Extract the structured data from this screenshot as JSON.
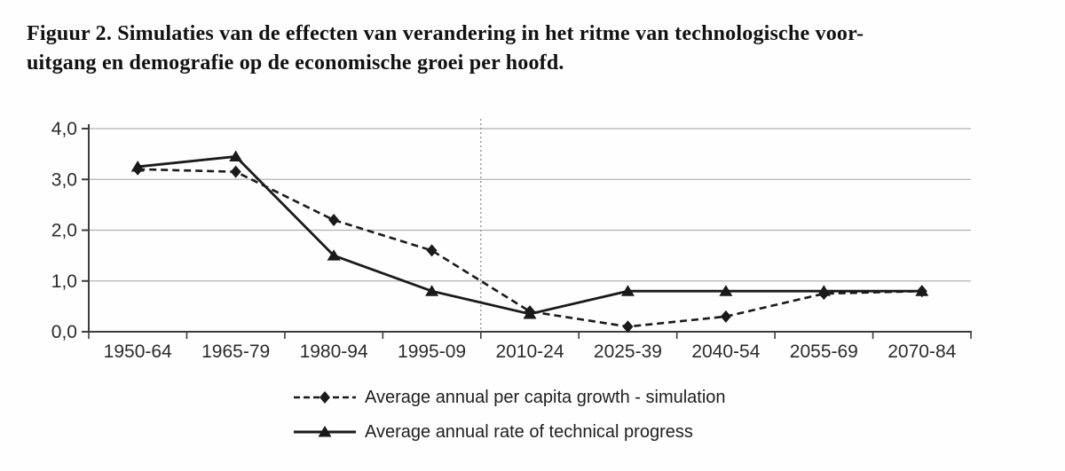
{
  "title": {
    "line1": "Figuur 2. Simulaties van de effecten van verandering in het ritme van technologische voor-",
    "line2": "uitgang en demografie op de economische groei per hoofd."
  },
  "chart_data": {
    "type": "line",
    "categories": [
      "1950-64",
      "1965-79",
      "1980-94",
      "1995-09",
      "2010-24",
      "2025-39",
      "2040-54",
      "2055-69",
      "2070-84"
    ],
    "series": [
      {
        "name": "Average annual per capita growth - simulation",
        "line_style": "dashed",
        "marker": "diamond",
        "color": "#1a1a1a",
        "values": [
          3.2,
          3.15,
          2.2,
          1.6,
          0.4,
          0.1,
          0.3,
          0.75,
          0.8
        ]
      },
      {
        "name": "Average annual rate of technical progress",
        "line_style": "solid",
        "marker": "triangle",
        "color": "#1a1a1a",
        "values": [
          3.25,
          3.45,
          1.5,
          0.8,
          0.35,
          0.8,
          0.8,
          0.8,
          0.8
        ]
      }
    ],
    "ylim": [
      0.0,
      4.0
    ],
    "yticks": [
      {
        "value": 0,
        "label": "0,0"
      },
      {
        "value": 1,
        "label": "1,0"
      },
      {
        "value": 2,
        "label": "2,0"
      },
      {
        "value": 3,
        "label": "3,0"
      },
      {
        "value": 4,
        "label": "4,0"
      }
    ],
    "grid": "horizontal",
    "divider": {
      "style": "dotted",
      "between": [
        "1995-09",
        "2010-24"
      ]
    },
    "legend_position": "bottom",
    "axis_color": "#3d3d3d",
    "grid_color": "#b2b2b2"
  }
}
